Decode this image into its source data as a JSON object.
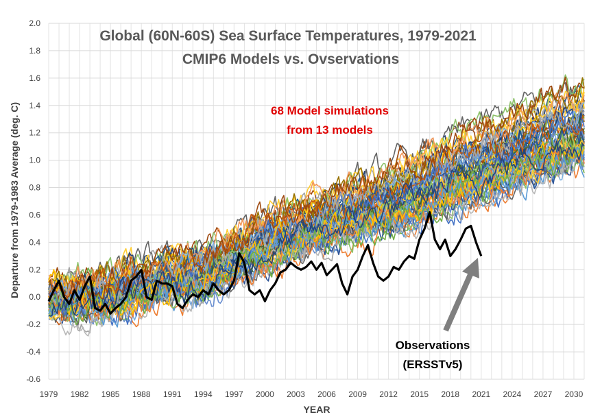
{
  "chart_data": {
    "type": "line",
    "title": "Global (60N-60S) Sea Surface Temperatures, 1979-2021",
    "subtitle": "CMIP6 Models vs. Ovservations",
    "xlabel": "YEAR",
    "ylabel": "Departure from 1979-1983 Average (deg. C)",
    "xlim": [
      1979,
      2031
    ],
    "ylim": [
      -0.6,
      2.0
    ],
    "x_ticks": [
      1979,
      1982,
      1985,
      1988,
      1991,
      1994,
      1997,
      2000,
      2003,
      2006,
      2009,
      2012,
      2015,
      2018,
      2021,
      2024,
      2027,
      2030
    ],
    "x_tick_labels": [
      "1979",
      "1982",
      "1985",
      "1988",
      "1991",
      "1994",
      "1997",
      "2000",
      "2003",
      "2006",
      "2009",
      "2012",
      "2015",
      "2018",
      "2021",
      "2024",
      "2027",
      "2030"
    ],
    "y_ticks": [
      -0.6,
      -0.4,
      -0.2,
      0.0,
      0.2,
      0.4,
      0.6,
      0.8,
      1.0,
      1.2,
      1.4,
      1.6,
      1.8,
      2.0
    ],
    "y_tick_labels": [
      "-0.6",
      "-0.4",
      "-0.2",
      "0.0",
      "0.2",
      "0.4",
      "0.6",
      "0.8",
      "1.0",
      "1.2",
      "1.4",
      "1.6",
      "1.8",
      "2.0"
    ],
    "grid": true,
    "model_annotation": [
      "68 Model simulations",
      "from 13 models"
    ],
    "observation_annotation": [
      "Observations",
      "(ERSSTv5)"
    ],
    "model_series": {
      "count": 68,
      "years": [
        1979,
        1985,
        1990,
        1995,
        2000,
        2005,
        2010,
        2015,
        2020,
        2025,
        2031
      ],
      "mean": [
        0.0,
        0.05,
        0.15,
        0.22,
        0.42,
        0.55,
        0.68,
        0.82,
        0.98,
        1.12,
        1.28
      ],
      "spread": [
        0.1,
        0.14,
        0.14,
        0.16,
        0.18,
        0.18,
        0.2,
        0.24,
        0.26,
        0.28,
        0.3
      ],
      "colors": [
        "#4472c4",
        "#ed7d31",
        "#a5a5a5",
        "#ffc000",
        "#5b9bd5",
        "#70ad47",
        "#264478",
        "#9e480e",
        "#636363",
        "#997300",
        "#255e91",
        "#43682b",
        "#698ed0",
        "#f1975a",
        "#b7b7b7",
        "#ffcd33",
        "#7cafdd",
        "#8cc168",
        "#2f5597",
        "#c55a11"
      ]
    },
    "series": [
      {
        "name": "Observations (ERSSTv5)",
        "color": "#000000",
        "x": [
          1979.0,
          1979.5,
          1980.0,
          1980.5,
          1981.0,
          1981.5,
          1982.0,
          1982.5,
          1983.0,
          1983.5,
          1984.0,
          1984.5,
          1985.0,
          1985.5,
          1986.0,
          1986.5,
          1987.0,
          1987.5,
          1988.0,
          1988.5,
          1989.0,
          1989.5,
          1990.0,
          1990.5,
          1991.0,
          1991.5,
          1992.0,
          1992.5,
          1993.0,
          1993.5,
          1994.0,
          1994.5,
          1995.0,
          1995.5,
          1996.0,
          1996.5,
          1997.0,
          1997.5,
          1998.0,
          1998.5,
          1999.0,
          1999.5,
          2000.0,
          2000.5,
          2001.0,
          2001.5,
          2002.0,
          2002.5,
          2003.0,
          2003.5,
          2004.0,
          2004.5,
          2005.0,
          2005.5,
          2006.0,
          2006.5,
          2007.0,
          2007.5,
          2008.0,
          2008.5,
          2009.0,
          2009.5,
          2010.0,
          2010.5,
          2011.0,
          2011.5,
          2012.0,
          2012.5,
          2013.0,
          2013.5,
          2014.0,
          2014.5,
          2015.0,
          2015.5,
          2016.0,
          2016.5,
          2017.0,
          2017.5,
          2018.0,
          2018.5,
          2019.0,
          2019.5,
          2020.0,
          2020.5,
          2021.0
        ],
        "y": [
          -0.03,
          0.05,
          0.12,
          0.0,
          -0.05,
          0.05,
          -0.02,
          0.08,
          0.15,
          -0.08,
          -0.1,
          -0.05,
          -0.12,
          -0.08,
          -0.05,
          0.0,
          0.12,
          0.15,
          0.2,
          0.0,
          -0.02,
          0.12,
          0.1,
          0.1,
          0.08,
          -0.05,
          -0.08,
          -0.02,
          0.02,
          0.0,
          0.05,
          0.02,
          0.1,
          0.05,
          0.02,
          0.05,
          0.12,
          0.32,
          0.25,
          0.05,
          0.02,
          0.05,
          -0.03,
          0.05,
          0.1,
          0.18,
          0.2,
          0.25,
          0.22,
          0.2,
          0.22,
          0.26,
          0.2,
          0.25,
          0.16,
          0.2,
          0.24,
          0.1,
          0.02,
          0.15,
          0.2,
          0.3,
          0.38,
          0.25,
          0.15,
          0.12,
          0.15,
          0.22,
          0.2,
          0.26,
          0.3,
          0.28,
          0.42,
          0.5,
          0.62,
          0.42,
          0.35,
          0.42,
          0.3,
          0.35,
          0.42,
          0.5,
          0.52,
          0.4,
          0.3
        ]
      }
    ]
  }
}
